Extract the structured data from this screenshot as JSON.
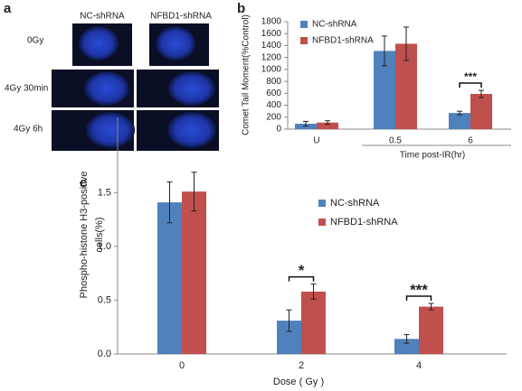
{
  "panel_a": {
    "label": "a",
    "columns": [
      "NC-shRNA",
      "NFBD1-shRNA"
    ],
    "rows": [
      "0Gy",
      "4Gy 30min",
      "4Gy 6h"
    ]
  },
  "chart_data": [
    {
      "type": "bar",
      "label": "b",
      "ylabel": [
        "Comet Tail Moment(%Control)"
      ],
      "xlabel": "Time post-IR(hr)",
      "categories": [
        "U",
        "0.5",
        "6"
      ],
      "series": [
        {
          "name": "NC-shRNA",
          "color": "#4f81bd",
          "values": [
            90,
            1310,
            270
          ],
          "errors": [
            40,
            250,
            30
          ]
        },
        {
          "name": "NFBD1-shRNA",
          "color": "#c0504d",
          "values": [
            110,
            1430,
            590
          ],
          "errors": [
            30,
            280,
            60
          ]
        }
      ],
      "ylim": [
        0,
        1800
      ],
      "yticks": [
        0,
        200,
        400,
        600,
        800,
        1000,
        1200,
        1400,
        1600,
        1800
      ],
      "annotations": [
        "***"
      ]
    },
    {
      "type": "bar",
      "label": "c",
      "ylabel": [
        "Phospho-histone H3-positive",
        "cells(%)"
      ],
      "xlabel": "Dose ( Gy )",
      "categories": [
        "0",
        "2",
        "4"
      ],
      "series": [
        {
          "name": "NC-shRNA",
          "color": "#4f81bd",
          "values": [
            1.41,
            0.31,
            0.14
          ],
          "errors": [
            0.19,
            0.1,
            0.04
          ]
        },
        {
          "name": "NFBD1-shRNA",
          "color": "#c0504d",
          "values": [
            1.51,
            0.58,
            0.44
          ],
          "errors": [
            0.18,
            0.07,
            0.03
          ]
        }
      ],
      "ylim": [
        0,
        2.2
      ],
      "yticks": [
        {
          "value": 0,
          "label": "0.0"
        },
        {
          "value": 0.5,
          "label": "0.5"
        },
        {
          "value": 1,
          "label": "1.0"
        },
        {
          "value": 1.5,
          "label": "1.5"
        }
      ],
      "annotations": [
        "*",
        "***"
      ]
    }
  ]
}
